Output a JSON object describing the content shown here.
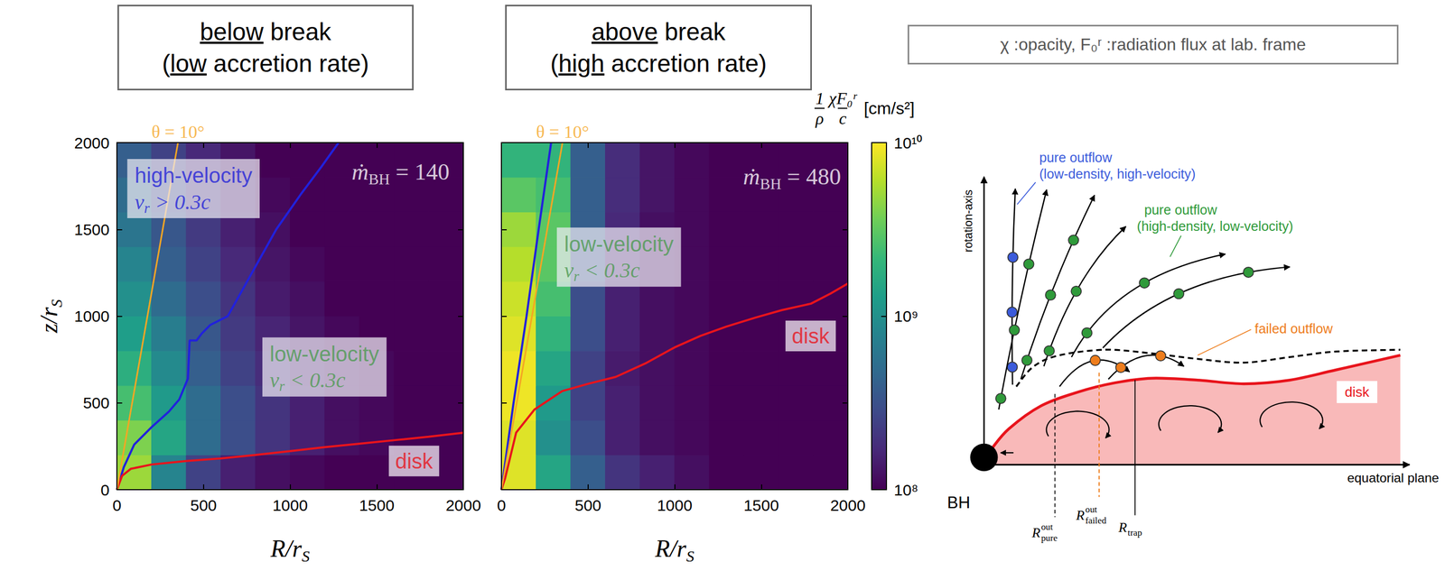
{
  "chart_data": [
    {
      "type": "heatmap",
      "title": [
        "below break",
        "(low accretion rate)"
      ],
      "xlabel": {
        "text": "R/r",
        "subscript": "S"
      },
      "ylabel": {
        "text": "z/r",
        "subscript": "S"
      },
      "xlim": [
        0,
        2000
      ],
      "ylim": [
        0,
        2000
      ],
      "xticks": [
        0,
        500,
        1000,
        1500,
        2000
      ],
      "yticks": [
        0,
        500,
        1000,
        1500,
        2000
      ],
      "cells": {
        "x": [
          100,
          300,
          500,
          700,
          900,
          1100,
          1300,
          1500,
          1700,
          1900
        ],
        "z": [
          100,
          300,
          500,
          700,
          900,
          1100,
          1300,
          1500,
          1700,
          1900
        ],
        "values": [
          [
            5000000000.0,
            800000000.0,
            250000000.0,
            150000000.0,
            120000000.0,
            110000000.0,
            100000000.0,
            100000000.0,
            100000000.0,
            100000000.0
          ],
          [
            4000000000.0,
            1500000000.0,
            500000000.0,
            300000000.0,
            200000000.0,
            150000000.0,
            120000000.0,
            110000000.0,
            100000000.0,
            100000000.0
          ],
          [
            2500000000.0,
            1200000000.0,
            500000000.0,
            300000000.0,
            200000000.0,
            150000000.0,
            120000000.0,
            110000000.0,
            100000000.0,
            100000000.0
          ],
          [
            1800000000.0,
            900000000.0,
            400000000.0,
            250000000.0,
            180000000.0,
            140000000.0,
            120000000.0,
            110000000.0,
            100000000.0,
            100000000.0
          ],
          [
            1300000000.0,
            700000000.0,
            350000000.0,
            220000000.0,
            160000000.0,
            130000000.0,
            110000000.0,
            100000000.0,
            100000000.0,
            100000000.0
          ],
          [
            1000000000.0,
            500000000.0,
            300000000.0,
            200000000.0,
            140000000.0,
            120000000.0,
            100000000.0,
            100000000.0,
            100000000.0,
            100000000.0
          ],
          [
            800000000.0,
            400000000.0,
            250000000.0,
            170000000.0,
            130000000.0,
            110000000.0,
            100000000.0,
            100000000.0,
            100000000.0,
            100000000.0
          ],
          [
            600000000.0,
            350000000.0,
            220000000.0,
            150000000.0,
            120000000.0,
            100000000.0,
            100000000.0,
            100000000.0,
            100000000.0,
            100000000.0
          ],
          [
            500000000.0,
            300000000.0,
            200000000.0,
            140000000.0,
            110000000.0,
            100000000.0,
            100000000.0,
            100000000.0,
            100000000.0,
            100000000.0
          ],
          [
            400000000.0,
            250000000.0,
            170000000.0,
            130000000.0,
            100000000.0,
            100000000.0,
            100000000.0,
            100000000.0,
            100000000.0,
            100000000.0
          ]
        ]
      },
      "curves": [
        {
          "color": "#2121dc",
          "x": [
            0,
            40,
            100,
            200,
            300,
            360,
            410,
            420,
            460,
            490,
            540,
            640,
            780,
            920,
            1060,
            1180,
            1280
          ],
          "y": [
            0,
            130,
            260,
            360,
            450,
            520,
            640,
            860,
            860,
            900,
            950,
            1000,
            1250,
            1500,
            1700,
            1860,
            2000
          ]
        },
        {
          "color": "#e8141c",
          "x": [
            0,
            30,
            80,
            200,
            400,
            600,
            800,
            1000,
            1200,
            1400,
            1600,
            1800,
            2000
          ],
          "y": [
            0,
            80,
            120,
            145,
            165,
            180,
            200,
            222,
            245,
            265,
            285,
            305,
            328
          ]
        }
      ],
      "angle": {
        "symbol": "θ",
        "relation": "=",
        "value": 10,
        "unit": "°",
        "color": "#f5a623"
      },
      "annotations": [
        {
          "text": "high-velocity",
          "quantity": {
            "symbol": "v",
            "subscript": "r",
            "relation": ">",
            "value": 0.3,
            "unit": "c"
          },
          "color": "#2323d8"
        },
        {
          "text": "low-velocity",
          "quantity": {
            "symbol": "v",
            "subscript": "r",
            "relation": "<",
            "value": 0.3,
            "unit": "c"
          },
          "color": "#4e9a52"
        },
        {
          "quantity": {
            "symbol": "ṁ",
            "subscript": "BH",
            "relation": "=",
            "value": 140
          },
          "color": "#ffffff"
        },
        {
          "text": "disk",
          "color": "#e8141c"
        }
      ]
    },
    {
      "type": "heatmap",
      "title": [
        "above break",
        "(high accretion rate)"
      ],
      "xlabel": {
        "text": "R/r",
        "subscript": "S"
      },
      "xlim": [
        0,
        2000
      ],
      "ylim": [
        0,
        2000
      ],
      "xticks": [
        0,
        500,
        1000,
        1500,
        2000
      ],
      "yticks": [
        0,
        500,
        1000,
        1500,
        2000
      ],
      "tick_labels": "x",
      "cells": {
        "x": [
          100,
          300,
          500,
          700,
          900,
          1100,
          1300,
          1500,
          1700,
          1900
        ],
        "z": [
          100,
          300,
          500,
          700,
          900,
          1100,
          1300,
          1500,
          1700,
          1900
        ],
        "values": [
          [
            8000000000.0,
            1500000000.0,
            400000000.0,
            200000000.0,
            150000000.0,
            120000000.0,
            100000000.0,
            100000000.0,
            100000000.0,
            100000000.0
          ],
          [
            8000000000.0,
            1000000000.0,
            300000000.0,
            150000000.0,
            120000000.0,
            110000000.0,
            100000000.0,
            100000000.0,
            100000000.0,
            100000000.0
          ],
          [
            9000000000.0,
            1200000000.0,
            250000000.0,
            150000000.0,
            120000000.0,
            110000000.0,
            100000000.0,
            100000000.0,
            100000000.0,
            100000000.0
          ],
          [
            9000000000.0,
            1500000000.0,
            250000000.0,
            140000000.0,
            120000000.0,
            110000000.0,
            100000000.0,
            100000000.0,
            100000000.0,
            100000000.0
          ],
          [
            8000000000.0,
            2000000000.0,
            300000000.0,
            150000000.0,
            120000000.0,
            110000000.0,
            100000000.0,
            100000000.0,
            100000000.0,
            100000000.0
          ],
          [
            7000000000.0,
            2500000000.0,
            300000000.0,
            150000000.0,
            120000000.0,
            110000000.0,
            100000000.0,
            100000000.0,
            100000000.0,
            100000000.0
          ],
          [
            6000000000.0,
            3000000000.0,
            350000000.0,
            160000000.0,
            120000000.0,
            110000000.0,
            100000000.0,
            100000000.0,
            100000000.0,
            100000000.0
          ],
          [
            5000000000.0,
            3000000000.0,
            400000000.0,
            170000000.0,
            120000000.0,
            110000000.0,
            100000000.0,
            100000000.0,
            100000000.0,
            100000000.0
          ],
          [
            3000000000.0,
            2500000000.0,
            400000000.0,
            180000000.0,
            130000000.0,
            110000000.0,
            100000000.0,
            100000000.0,
            100000000.0,
            100000000.0
          ],
          [
            2000000000.0,
            2000000000.0,
            400000000.0,
            180000000.0,
            130000000.0,
            110000000.0,
            100000000.0,
            100000000.0,
            100000000.0,
            100000000.0
          ]
        ]
      },
      "curves": [
        {
          "color": "#2121dc",
          "x": [
            0,
            70,
            145,
            215,
            287
          ],
          "y": [
            0,
            500,
            1000,
            1500,
            2000
          ]
        },
        {
          "color": "#e8141c",
          "x": [
            0,
            21,
            85,
            191,
            351,
            500,
            660,
            830,
            1000,
            1149,
            1300,
            1468,
            1620,
            1787,
            1900,
            2000
          ],
          "y": [
            0,
            64,
            329,
            462,
            568,
            610,
            650,
            727,
            820,
            886,
            940,
            992,
            1035,
            1072,
            1130,
            1188
          ]
        }
      ],
      "angle": {
        "symbol": "θ",
        "relation": "=",
        "value": 10,
        "unit": "°",
        "color": "#f5a623"
      },
      "annotations": [
        {
          "text": "low-velocity",
          "quantity": {
            "symbol": "v",
            "subscript": "r",
            "relation": "<",
            "value": 0.3,
            "unit": "c"
          },
          "color": "#4e9a52"
        },
        {
          "quantity": {
            "symbol": "ṁ",
            "subscript": "BH",
            "relation": "=",
            "value": 480
          },
          "color": "#ffffff"
        },
        {
          "text": "disk",
          "color": "#e8141c"
        }
      ]
    }
  ],
  "colorbar": {
    "log": true,
    "lim": [
      100000000,
      10000000000
    ],
    "ticks": [
      {
        "value": 100000000,
        "label": "10⁸"
      },
      {
        "value": 1000000000,
        "label": "10⁹"
      },
      {
        "value": 10000000000,
        "label": "10¹⁰"
      }
    ],
    "label": {
      "fractions": [
        [
          "1",
          "ρ"
        ],
        [
          "χF₀ʳ",
          "c"
        ]
      ],
      "unit": "[cm/s²]"
    }
  },
  "note": "χ :opacity, F₀ʳ :radiation flux at lab. frame",
  "diagram": {
    "axis_labels": {
      "vertical": "rotation-axis",
      "horizontal": "equatorial plane"
    },
    "black_hole": "BH",
    "flows": [
      {
        "label": "pure outflow",
        "detail": "(low-density, high-velocity)",
        "color": "#3b5bdb"
      },
      {
        "label": "pure outflow",
        "detail": "(high-density, low-velocity)",
        "color": "#2f9a3a"
      },
      {
        "label": "failed outflow",
        "color": "#ee7d1c"
      }
    ],
    "disk": {
      "label": "disk",
      "color": "#e8141c"
    },
    "radii": [
      {
        "symbol": "R",
        "subscript": "pure",
        "superscript": "out"
      },
      {
        "symbol": "R",
        "subscript": "failed",
        "superscript": "out"
      },
      {
        "symbol": "R",
        "subscript": "trap"
      }
    ]
  }
}
